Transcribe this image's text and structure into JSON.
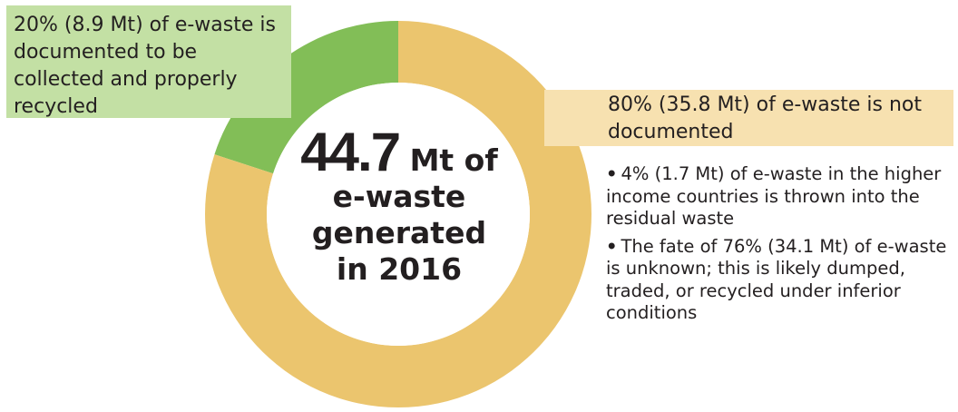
{
  "chart_data": {
    "type": "pie",
    "donut": true,
    "slices": [
      {
        "label": "20% (8.9 Mt) of e-waste is documented to be collected and properly recycled",
        "value": 20,
        "mt": 8.9,
        "color": "#82be57"
      },
      {
        "label": "80% (35.8 Mt) of e-waste is not documented",
        "value": 80,
        "mt": 35.8,
        "color": "#ebc56e"
      }
    ],
    "center": {
      "number": "44.7",
      "unit": "Mt of",
      "line2": "e-waste",
      "line3": "generated",
      "line4": "in 2016"
    },
    "callouts": {
      "documented": "20% (8.9 Mt) of e-waste is documented to be collected and properly recycled",
      "not_documented": "80% (35.8 Mt) of e-waste is not documented",
      "bullets": [
        "4% (1.7 Mt) of e-waste in the higher income countries is thrown into the residual waste",
        "The fate of 76% (34.1 Mt) of e-waste is unknown; this is likely dumped, traded, or recycled under inferior conditions"
      ]
    }
  }
}
